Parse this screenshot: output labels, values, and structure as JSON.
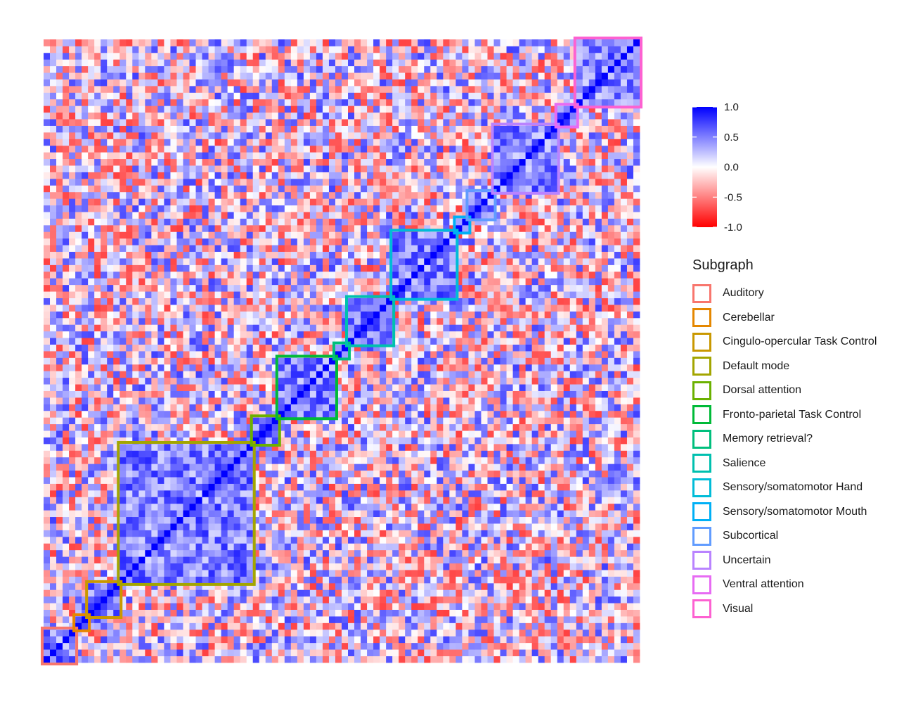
{
  "chart_data": {
    "type": "heatmap",
    "description_of_values": "correlation",
    "n_nodes": 94,
    "value_range": [
      -1.0,
      1.0
    ],
    "colorscale": {
      "low": "#ff0000",
      "mid": "#ffffff",
      "high": "#0000ff"
    },
    "colorbar": {
      "ticks": [
        "1.0",
        "0.5",
        "0.0",
        "-0.5",
        "-1.0"
      ],
      "tick_values": [
        1.0,
        0.5,
        0.0,
        -0.5,
        -1.0
      ]
    },
    "legend_title": "Subgraph",
    "subgraphs": [
      {
        "name": "Auditory",
        "start": 0,
        "end": 5,
        "color": "#F8766D"
      },
      {
        "name": "Cerebellar",
        "start": 5,
        "end": 7,
        "color": "#E58700"
      },
      {
        "name": "Cingulo-opercular Task Control",
        "start": 7,
        "end": 12,
        "color": "#C99800"
      },
      {
        "name": "Default mode",
        "start": 12,
        "end": 33,
        "color": "#A3A500"
      },
      {
        "name": "Dorsal attention",
        "start": 33,
        "end": 37,
        "color": "#6BB100"
      },
      {
        "name": "Fronto-parietal Task Control",
        "start": 37,
        "end": 46,
        "color": "#00BA38"
      },
      {
        "name": "Memory retrieval?",
        "start": 46,
        "end": 48,
        "color": "#00BF7D"
      },
      {
        "name": "Salience",
        "start": 48,
        "end": 55,
        "color": "#00C0AF"
      },
      {
        "name": "Sensory/somatomotor Hand",
        "start": 55,
        "end": 65,
        "color": "#00BCD8"
      },
      {
        "name": "Sensory/somatomotor Mouth",
        "start": 65,
        "end": 67,
        "color": "#00B0F6"
      },
      {
        "name": "Subcortical",
        "start": 67,
        "end": 71,
        "color": "#619CFF"
      },
      {
        "name": "Uncertain",
        "start": 71,
        "end": 81,
        "color": "#B983FF"
      },
      {
        "name": "Ventral attention",
        "start": 81,
        "end": 84,
        "color": "#E76BF3"
      },
      {
        "name": "Visual",
        "start": 84,
        "end": 94,
        "color": "#FD61D1"
      }
    ],
    "diagonal_value": 1.0,
    "off_diagonal": "noisy correlations ranging roughly -1 to 1, higher (bluer) within subgraph blocks",
    "grid": false,
    "legend_position": "right"
  }
}
